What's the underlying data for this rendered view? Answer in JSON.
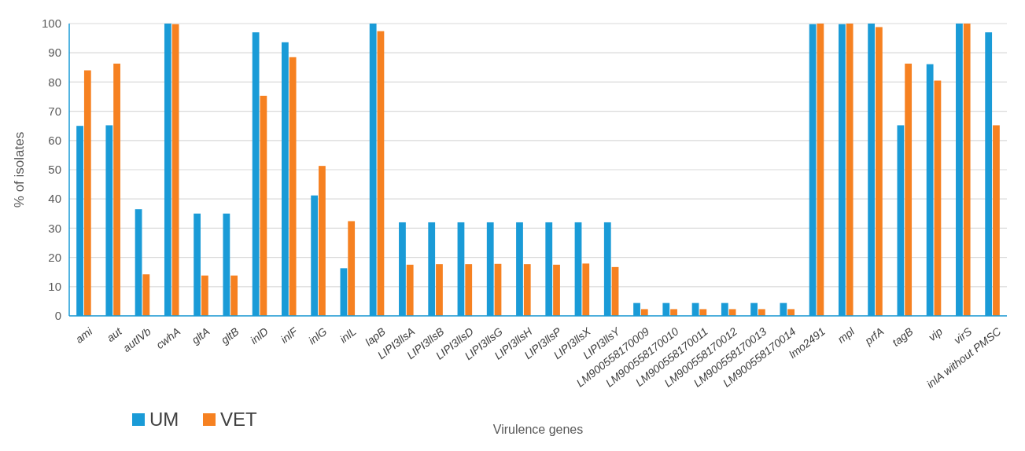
{
  "chart_data": {
    "type": "bar",
    "xlabel": "Virulence genes",
    "ylabel": "% of isolates",
    "categories": [
      "ami",
      "aut",
      "autIVb",
      "cwhA",
      "gltA",
      "gltB",
      "inlD",
      "inlF",
      "inlG",
      "inlL",
      "lapB",
      "LIPI3llsA",
      "LIPI3llsB",
      "LIPI3llsD",
      "LIPI3llsG",
      "LIPI3llsH",
      "LIPI3llsP",
      "LIPI3llsX",
      "LIPI3llsY",
      "LM900558170009",
      "LM900558170010",
      "LM900558170011",
      "LM900558170012",
      "LM900558170013",
      "LM900558170014",
      "lmo2491",
      "mpl",
      "prfA",
      "tagB",
      "vip",
      "virS",
      "inlA without PMSC"
    ],
    "series": [
      {
        "name": "UM",
        "color": "#1a9bd7",
        "values": [
          65,
          65.2,
          36.5,
          100,
          35,
          35,
          97,
          93.6,
          41.2,
          16.3,
          100,
          32,
          32,
          32,
          32,
          32,
          32,
          32,
          32,
          4.4,
          4.4,
          4.4,
          4.4,
          4.4,
          4.4,
          99.8,
          99.8,
          100,
          65.2,
          86.1,
          100,
          97
        ]
      },
      {
        "name": "VET",
        "color": "#f68121",
        "values": [
          84,
          86.3,
          14.2,
          99.8,
          13.8,
          13.8,
          75.3,
          88.5,
          51.3,
          32.4,
          97.4,
          17.5,
          17.7,
          17.7,
          17.8,
          17.7,
          17.5,
          17.9,
          16.7,
          2.3,
          2.3,
          2.3,
          2.3,
          2.3,
          2.3,
          100,
          100,
          98.8,
          86.3,
          80.5,
          100,
          65.2
        ]
      }
    ],
    "ylim": [
      0,
      100
    ],
    "yticks": [
      0,
      10,
      20,
      30,
      40,
      50,
      60,
      70,
      80,
      90,
      100
    ],
    "grid": "y",
    "legend": "bottom left"
  }
}
